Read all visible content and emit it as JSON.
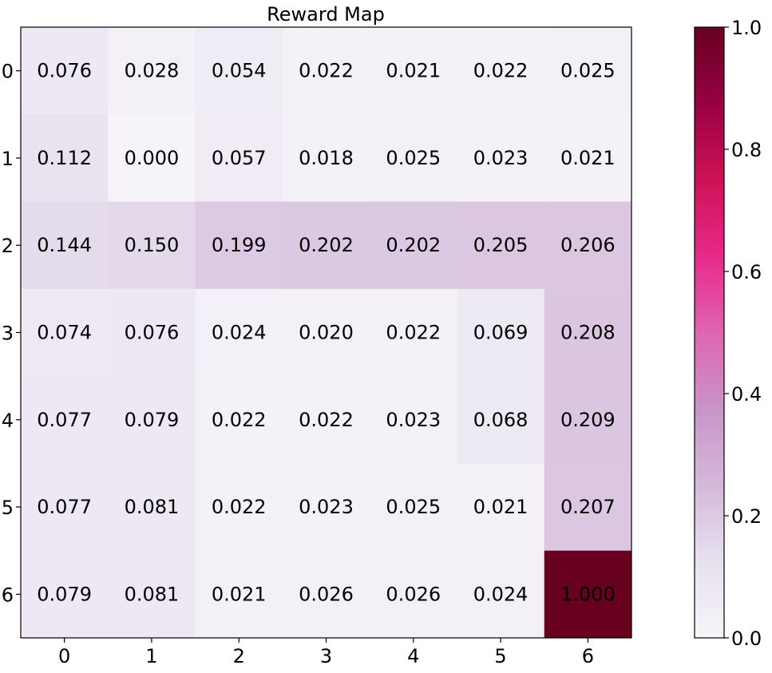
{
  "chart_data": {
    "type": "heatmap",
    "title": "Reward Map",
    "xlabel": "",
    "ylabel": "",
    "x_ticks": [
      "0",
      "1",
      "2",
      "3",
      "4",
      "5",
      "6"
    ],
    "y_ticks": [
      "0",
      "1",
      "2",
      "3",
      "4",
      "5",
      "6"
    ],
    "values": [
      [
        0.076,
        0.028,
        0.054,
        0.022,
        0.021,
        0.022,
        0.025
      ],
      [
        0.112,
        0.0,
        0.057,
        0.018,
        0.025,
        0.023,
        0.021
      ],
      [
        0.144,
        0.15,
        0.199,
        0.202,
        0.202,
        0.205,
        0.206
      ],
      [
        0.074,
        0.076,
        0.024,
        0.02,
        0.022,
        0.069,
        0.208
      ],
      [
        0.077,
        0.079,
        0.022,
        0.022,
        0.023,
        0.068,
        0.209
      ],
      [
        0.077,
        0.081,
        0.022,
        0.023,
        0.025,
        0.021,
        0.207
      ],
      [
        0.079,
        0.081,
        0.021,
        0.026,
        0.026,
        0.024,
        1.0
      ]
    ],
    "value_labels": [
      [
        "0.076",
        "0.028",
        "0.054",
        "0.022",
        "0.021",
        "0.022",
        "0.025"
      ],
      [
        "0.112",
        "0.000",
        "0.057",
        "0.018",
        "0.025",
        "0.023",
        "0.021"
      ],
      [
        "0.144",
        "0.150",
        "0.199",
        "0.202",
        "0.202",
        "0.205",
        "0.206"
      ],
      [
        "0.074",
        "0.076",
        "0.024",
        "0.020",
        "0.022",
        "0.069",
        "0.208"
      ],
      [
        "0.077",
        "0.079",
        "0.022",
        "0.022",
        "0.023",
        "0.068",
        "0.209"
      ],
      [
        "0.077",
        "0.081",
        "0.022",
        "0.023",
        "0.025",
        "0.021",
        "0.207"
      ],
      [
        "0.079",
        "0.081",
        "0.021",
        "0.026",
        "0.026",
        "0.024",
        "1.000"
      ]
    ],
    "colormap": "PuRd",
    "colormap_stops": [
      "#f7f4f9",
      "#e7e1ef",
      "#d4b9da",
      "#c994c7",
      "#df65b0",
      "#e7298a",
      "#ce1256",
      "#980043",
      "#67001f"
    ],
    "colorbar": {
      "range": [
        0.0,
        1.0
      ],
      "tick_values": [
        0.0,
        0.2,
        0.4,
        0.6,
        0.8,
        1.0
      ],
      "tick_labels": [
        "0.0",
        "0.2",
        "0.4",
        "0.6",
        "0.8",
        "1.0"
      ],
      "placement": "right"
    },
    "grid": false
  }
}
